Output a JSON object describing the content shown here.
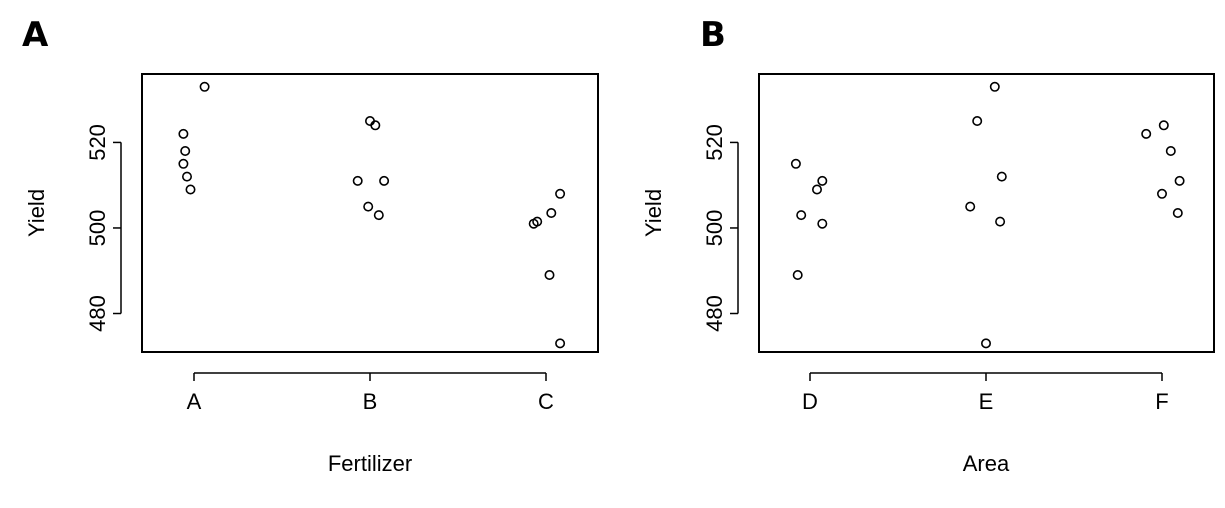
{
  "chart_data": [
    {
      "type": "scatter",
      "panel_label": "A",
      "xlabel": "Fertilizer",
      "ylabel": "Yield",
      "categories": [
        "A",
        "B",
        "C"
      ],
      "yticks": [
        480,
        500,
        520
      ],
      "ylim": [
        471,
        536
      ],
      "jitter": {
        "A": [
          0.06,
          -0.06,
          -0.05,
          -0.06,
          -0.04,
          -0.02
        ],
        "B": [
          -0.07,
          0.0,
          0.03,
          0.08,
          -0.01,
          0.05
        ],
        "C": [
          -0.07,
          -0.05,
          0.03,
          0.08,
          0.08,
          0.02
        ]
      },
      "series": [
        {
          "category": "A",
          "values": [
            533,
            522,
            518,
            515,
            512,
            509
          ]
        },
        {
          "category": "B",
          "values": [
            511,
            525,
            524,
            511,
            505,
            503
          ]
        },
        {
          "category": "C",
          "values": [
            501,
            501.5,
            503.5,
            508,
            473,
            489
          ]
        }
      ],
      "grid": false
    },
    {
      "type": "scatter",
      "panel_label": "B",
      "xlabel": "Area",
      "ylabel": "Yield",
      "categories": [
        "D",
        "E",
        "F"
      ],
      "yticks": [
        480,
        500,
        520
      ],
      "ylim": [
        471,
        536
      ],
      "jitter": {
        "D": [
          -0.08,
          -0.05,
          0.04,
          0.07,
          0.07,
          -0.07
        ],
        "E": [
          0.05,
          -0.05,
          0.09,
          -0.09,
          0.08,
          0.0
        ],
        "F": [
          -0.09,
          0.01,
          0.05,
          0.1,
          0.0,
          0.09
        ]
      },
      "series": [
        {
          "category": "D",
          "values": [
            515,
            503,
            509,
            511,
            501,
            489
          ]
        },
        {
          "category": "E",
          "values": [
            533,
            525,
            512,
            505,
            501.5,
            473
          ]
        },
        {
          "category": "F",
          "values": [
            522,
            524,
            518,
            511,
            508,
            503.5
          ]
        }
      ],
      "grid": false
    }
  ]
}
